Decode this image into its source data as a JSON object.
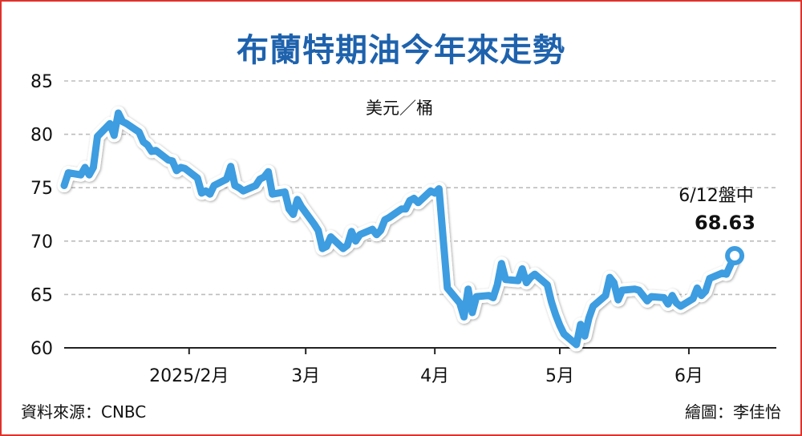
{
  "title": "布蘭特期油今年來走勢",
  "unit": "美元／桶",
  "annotation": {
    "line1": "6/12盤中",
    "line2": "68.63"
  },
  "source": "資料來源：CNBC",
  "credit": "繪圖：李佳怡",
  "colors": {
    "line": "#3d9de0",
    "title": "#1e62ad",
    "border": "#e0322c",
    "grid": "#bdbdbd",
    "marker_fill": "#ffffff"
  },
  "chart_data": {
    "type": "line",
    "title": "布蘭特期油今年來走勢",
    "ylabel": "美元／桶",
    "xlabel": "",
    "ylim": [
      60,
      85
    ],
    "xlim": [
      "2025-01-02",
      "2025-06-22"
    ],
    "y_ticks": [
      60,
      65,
      70,
      75,
      80,
      85
    ],
    "x_ticks": [
      {
        "label": "2025/2月",
        "date": "2025-02-01"
      },
      {
        "label": "3月",
        "date": "2025-03-01"
      },
      {
        "label": "4月",
        "date": "2025-04-01"
      },
      {
        "label": "5月",
        "date": "2025-05-01"
      },
      {
        "label": "6月",
        "date": "2025-06-01"
      }
    ],
    "grid": "horizontal dashed",
    "series": [
      {
        "points": [
          [
            "2025-01-02",
            75.2
          ],
          [
            "2025-01-03",
            76.4
          ],
          [
            "2025-01-06",
            76.2
          ],
          [
            "2025-01-07",
            76.9
          ],
          [
            "2025-01-08",
            76.2
          ],
          [
            "2025-01-09",
            76.9
          ],
          [
            "2025-01-10",
            79.8
          ],
          [
            "2025-01-13",
            81.0
          ],
          [
            "2025-01-14",
            79.9
          ],
          [
            "2025-01-15",
            82.0
          ],
          [
            "2025-01-16",
            81.2
          ],
          [
            "2025-01-17",
            81.0
          ],
          [
            "2025-01-20",
            80.2
          ],
          [
            "2025-01-21",
            79.3
          ],
          [
            "2025-01-22",
            79.0
          ],
          [
            "2025-01-23",
            78.4
          ],
          [
            "2025-01-24",
            78.5
          ],
          [
            "2025-01-27",
            77.6
          ],
          [
            "2025-01-28",
            77.5
          ],
          [
            "2025-01-29",
            76.6
          ],
          [
            "2025-01-30",
            76.9
          ],
          [
            "2025-01-31",
            76.8
          ],
          [
            "2025-02-03",
            75.9
          ],
          [
            "2025-02-04",
            74.5
          ],
          [
            "2025-02-05",
            74.7
          ],
          [
            "2025-02-06",
            74.4
          ],
          [
            "2025-02-07",
            75.2
          ],
          [
            "2025-02-10",
            75.8
          ],
          [
            "2025-02-11",
            77.0
          ],
          [
            "2025-02-12",
            75.2
          ],
          [
            "2025-02-13",
            75.0
          ],
          [
            "2025-02-14",
            74.7
          ],
          [
            "2025-02-17",
            75.2
          ],
          [
            "2025-02-18",
            75.8
          ],
          [
            "2025-02-19",
            76.0
          ],
          [
            "2025-02-20",
            76.5
          ],
          [
            "2025-02-21",
            74.4
          ],
          [
            "2025-02-24",
            74.6
          ],
          [
            "2025-02-25",
            73.0
          ],
          [
            "2025-02-26",
            72.5
          ],
          [
            "2025-02-27",
            73.9
          ],
          [
            "2025-02-28",
            73.2
          ],
          [
            "2025-03-03",
            71.6
          ],
          [
            "2025-03-04",
            71.0
          ],
          [
            "2025-03-05",
            69.3
          ],
          [
            "2025-03-06",
            69.5
          ],
          [
            "2025-03-07",
            70.4
          ],
          [
            "2025-03-10",
            69.3
          ],
          [
            "2025-03-11",
            69.6
          ],
          [
            "2025-03-12",
            70.9
          ],
          [
            "2025-03-13",
            70.0
          ],
          [
            "2025-03-14",
            70.6
          ],
          [
            "2025-03-17",
            71.1
          ],
          [
            "2025-03-18",
            70.6
          ],
          [
            "2025-03-19",
            71.0
          ],
          [
            "2025-03-20",
            72.0
          ],
          [
            "2025-03-21",
            72.2
          ],
          [
            "2025-03-24",
            73.0
          ],
          [
            "2025-03-25",
            73.0
          ],
          [
            "2025-03-26",
            73.8
          ],
          [
            "2025-03-27",
            74.0
          ],
          [
            "2025-03-28",
            73.6
          ],
          [
            "2025-03-31",
            74.7
          ],
          [
            "2025-04-01",
            74.5
          ],
          [
            "2025-04-02",
            74.9
          ],
          [
            "2025-04-03",
            70.2
          ],
          [
            "2025-04-04",
            65.6
          ],
          [
            "2025-04-07",
            64.2
          ],
          [
            "2025-04-08",
            62.9
          ],
          [
            "2025-04-09",
            65.5
          ],
          [
            "2025-04-10",
            63.3
          ],
          [
            "2025-04-11",
            64.8
          ],
          [
            "2025-04-14",
            64.9
          ],
          [
            "2025-04-15",
            64.7
          ],
          [
            "2025-04-16",
            65.9
          ],
          [
            "2025-04-17",
            67.9
          ],
          [
            "2025-04-18",
            66.4
          ],
          [
            "2025-04-21",
            66.3
          ],
          [
            "2025-04-22",
            67.4
          ],
          [
            "2025-04-23",
            66.1
          ],
          [
            "2025-04-24",
            66.6
          ],
          [
            "2025-04-25",
            66.9
          ],
          [
            "2025-04-28",
            65.9
          ],
          [
            "2025-04-29",
            64.3
          ],
          [
            "2025-04-30",
            63.1
          ],
          [
            "2025-05-01",
            62.1
          ],
          [
            "2025-05-02",
            61.3
          ],
          [
            "2025-05-05",
            60.3
          ],
          [
            "2025-05-06",
            62.2
          ],
          [
            "2025-05-07",
            61.1
          ],
          [
            "2025-05-08",
            62.8
          ],
          [
            "2025-05-09",
            63.9
          ],
          [
            "2025-05-12",
            64.9
          ],
          [
            "2025-05-13",
            66.6
          ],
          [
            "2025-05-14",
            66.1
          ],
          [
            "2025-05-15",
            64.5
          ],
          [
            "2025-05-16",
            65.4
          ],
          [
            "2025-05-19",
            65.5
          ],
          [
            "2025-05-20",
            65.4
          ],
          [
            "2025-05-21",
            64.9
          ],
          [
            "2025-05-22",
            64.4
          ],
          [
            "2025-05-23",
            64.8
          ],
          [
            "2025-05-26",
            64.7
          ],
          [
            "2025-05-27",
            64.1
          ],
          [
            "2025-05-28",
            64.9
          ],
          [
            "2025-05-29",
            64.2
          ],
          [
            "2025-05-30",
            63.9
          ],
          [
            "2025-06-02",
            64.6
          ],
          [
            "2025-06-03",
            65.6
          ],
          [
            "2025-06-04",
            64.9
          ],
          [
            "2025-06-05",
            65.3
          ],
          [
            "2025-06-06",
            66.5
          ],
          [
            "2025-06-09",
            67.0
          ],
          [
            "2025-06-10",
            66.9
          ],
          [
            "2025-06-12",
            68.63
          ]
        ]
      }
    ],
    "annotation": {
      "date": "2025-06-12",
      "value": 68.63,
      "text": [
        "6/12盤中",
        "68.63"
      ]
    }
  }
}
